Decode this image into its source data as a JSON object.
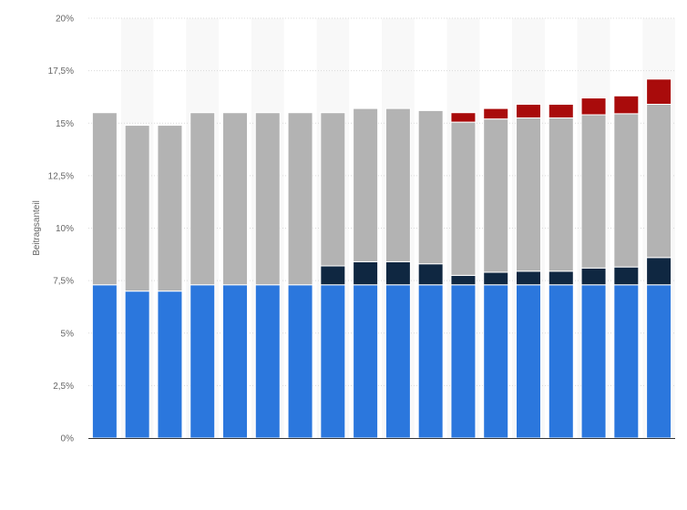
{
  "chart_data": {
    "type": "bar",
    "stacked": true,
    "ylabel": "Beitragsanteil",
    "xlabel": "",
    "ylim": [
      0,
      20
    ],
    "yticks": [
      "0%",
      "2,5%",
      "5%",
      "7,5%",
      "10%",
      "12,5%",
      "15%",
      "17,5%",
      "20%"
    ],
    "categories": [
      "",
      "",
      "",
      "",
      "",
      "",
      "",
      "",
      "",
      "",
      "",
      "",
      "",
      "",
      "",
      "",
      "",
      ""
    ],
    "grid": true,
    "series": [
      {
        "color": "#2b77dd",
        "values": [
          7.3,
          7.0,
          7.0,
          7.3,
          7.3,
          7.3,
          7.3,
          7.3,
          7.3,
          7.3,
          7.3,
          7.3,
          7.3,
          7.3,
          7.3,
          7.3,
          7.3,
          7.3
        ]
      },
      {
        "color": "#0f2741",
        "values": [
          0,
          0,
          0,
          0,
          0,
          0,
          0,
          0.9,
          1.1,
          1.1,
          1.0,
          0.45,
          0.6,
          0.65,
          0.65,
          0.8,
          0.85,
          1.3
        ]
      },
      {
        "color": "#b3b3b3",
        "values": [
          8.2,
          7.9,
          7.9,
          8.2,
          8.2,
          8.2,
          8.2,
          7.3,
          7.3,
          7.3,
          7.3,
          7.3,
          7.3,
          7.3,
          7.3,
          7.3,
          7.3,
          7.3
        ]
      },
      {
        "color": "#a90b0b",
        "values": [
          0,
          0,
          0,
          0,
          0,
          0,
          0,
          0,
          0,
          0,
          0,
          0.45,
          0.5,
          0.65,
          0.65,
          0.8,
          0.85,
          1.2
        ]
      }
    ]
  }
}
